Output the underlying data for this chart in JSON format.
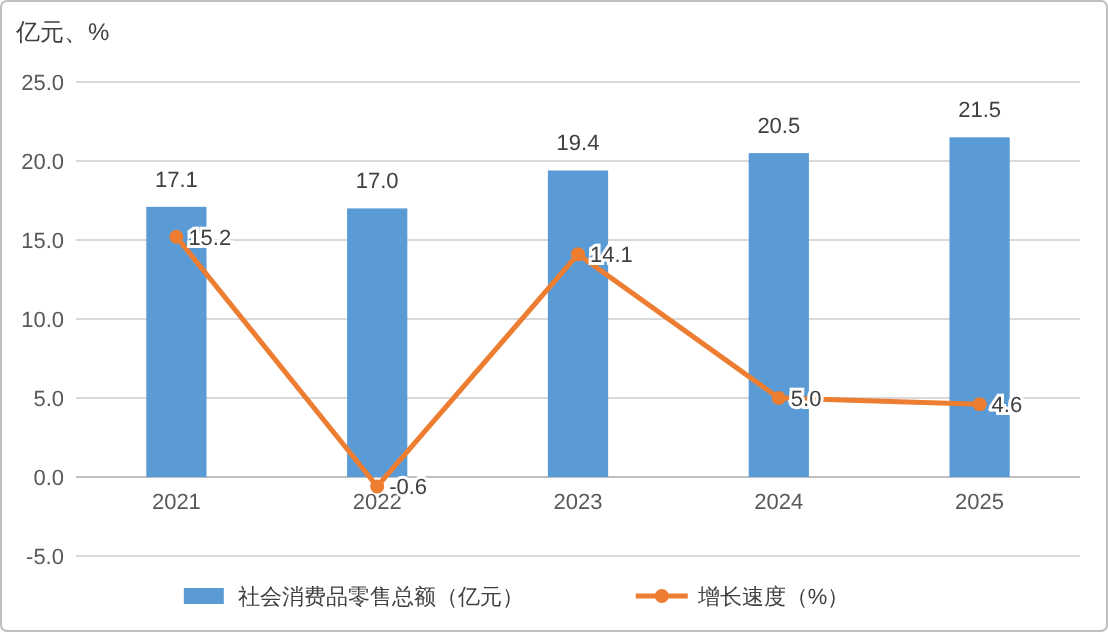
{
  "chart_data": {
    "type": "bar",
    "ylabel": "亿元、%",
    "categories": [
      "2021",
      "2022",
      "2023",
      "2024",
      "2025"
    ],
    "series": [
      {
        "name": "社会消费品零售总额（亿元）",
        "color": "#5b9bd5",
        "values": [
          17.1,
          17.0,
          19.4,
          20.5,
          21.5
        ],
        "value_labels": [
          "17.1",
          "17.0",
          "19.4",
          "20.5",
          "21.5"
        ]
      },
      {
        "name": "增长速度（%）",
        "type": "line",
        "color": "#ed7d31",
        "values": [
          15.2,
          -0.6,
          14.1,
          5.0,
          4.6
        ],
        "value_labels": [
          "15.2",
          "-0.6",
          "14.1",
          "5.0",
          "4.6"
        ]
      }
    ],
    "ylim": [
      -5,
      25
    ],
    "yticks": [
      {
        "value": -5,
        "label": "-5.0"
      },
      {
        "value": 0,
        "label": "0.0"
      },
      {
        "value": 5,
        "label": "5.0"
      },
      {
        "value": 10,
        "label": "10.0"
      },
      {
        "value": 15,
        "label": "15.0"
      },
      {
        "value": 20,
        "label": "20.0"
      },
      {
        "value": 25,
        "label": "25.0"
      }
    ],
    "grid": "y",
    "legend": "bottom",
    "marker": "circle",
    "line_style": "solid"
  }
}
